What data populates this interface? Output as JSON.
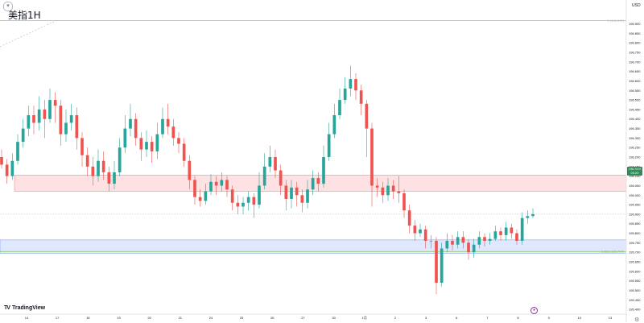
{
  "chart_data": {
    "type": "candlestick",
    "title": "美指1H",
    "currency_label": "USD",
    "ylim": [
      195.375,
      197.025
    ],
    "y_ticks": [
      "196.900",
      "196.850",
      "196.800",
      "196.750",
      "196.700",
      "196.650",
      "196.600",
      "196.550",
      "196.500",
      "196.450",
      "196.400",
      "196.350",
      "196.300",
      "196.250",
      "196.200",
      "196.150",
      "196.100",
      "196.050",
      "196.000",
      "195.950",
      "195.900",
      "195.850",
      "195.800",
      "195.750",
      "195.700",
      "195.650",
      "195.600",
      "195.550",
      "195.500",
      "195.450",
      "195.400"
    ],
    "x_ticks": [
      "14",
      "17",
      "18",
      "19",
      "20",
      "21",
      "24",
      "25",
      "26",
      "27",
      "30",
      "1月",
      "2",
      "3",
      "6",
      "7",
      "8",
      "9",
      "10",
      "13"
    ],
    "current_price": "196.XXX",
    "current_time": "00:20",
    "levels": [
      {
        "label": "0 (196.917)",
        "value": 196.917,
        "color": "#b2b5be"
      },
      {
        "label": "0.382 (195.704)",
        "value": 195.704,
        "color": "#8bc34a"
      }
    ],
    "zones": [
      {
        "name": "resistance",
        "from": 196.105,
        "to": 196.02,
        "color": "#f23645"
      },
      {
        "name": "support",
        "from": 195.765,
        "to": 195.695,
        "color": "#2962ff"
      }
    ],
    "candles": [
      [
        196.2,
        196.16,
        196.24,
        196.14
      ],
      [
        196.16,
        196.1,
        196.19,
        196.06
      ],
      [
        196.1,
        196.18,
        196.22,
        196.08
      ],
      [
        196.18,
        196.28,
        196.32,
        196.16
      ],
      [
        196.28,
        196.35,
        196.4,
        196.25
      ],
      [
        196.35,
        196.42,
        196.47,
        196.31
      ],
      [
        196.42,
        196.38,
        196.47,
        196.32
      ],
      [
        196.38,
        196.45,
        196.52,
        196.34
      ],
      [
        196.45,
        196.4,
        196.5,
        196.3
      ],
      [
        196.4,
        196.5,
        196.56,
        196.38
      ],
      [
        196.5,
        196.47,
        196.54,
        196.38
      ],
      [
        196.47,
        196.32,
        196.5,
        196.26
      ],
      [
        196.32,
        196.38,
        196.45,
        196.28
      ],
      [
        196.38,
        196.42,
        196.48,
        196.34
      ],
      [
        196.42,
        196.3,
        196.46,
        196.24
      ],
      [
        196.3,
        196.21,
        196.33,
        196.15
      ],
      [
        196.21,
        196.15,
        196.25,
        196.1
      ],
      [
        196.15,
        196.1,
        196.2,
        196.05
      ],
      [
        196.1,
        196.18,
        196.24,
        196.07
      ],
      [
        196.18,
        196.12,
        196.23,
        196.08
      ],
      [
        196.12,
        196.06,
        196.15,
        196.02
      ],
      [
        196.06,
        196.12,
        196.18,
        196.03
      ],
      [
        196.12,
        196.25,
        196.3,
        196.1
      ],
      [
        196.25,
        196.35,
        196.42,
        196.22
      ],
      [
        196.35,
        196.4,
        196.48,
        196.31
      ],
      [
        196.4,
        196.3,
        196.43,
        196.26
      ],
      [
        196.3,
        196.24,
        196.33,
        196.18
      ],
      [
        196.24,
        196.28,
        196.34,
        196.2
      ],
      [
        196.28,
        196.23,
        196.31,
        196.17
      ],
      [
        196.23,
        196.32,
        196.38,
        196.19
      ],
      [
        196.32,
        196.4,
        196.46,
        196.3
      ],
      [
        196.4,
        196.36,
        196.48,
        196.32
      ],
      [
        196.36,
        196.3,
        196.4,
        196.26
      ],
      [
        196.3,
        196.27,
        196.33,
        196.22
      ],
      [
        196.27,
        196.18,
        196.3,
        196.15
      ],
      [
        196.18,
        196.08,
        196.21,
        196.03
      ],
      [
        196.08,
        195.99,
        196.1,
        195.95
      ],
      [
        195.99,
        195.97,
        196.03,
        195.94
      ],
      [
        195.97,
        196.02,
        196.06,
        195.95
      ],
      [
        196.02,
        196.07,
        196.11,
        196.0
      ],
      [
        196.07,
        196.05,
        196.1,
        196.0
      ],
      [
        196.05,
        196.08,
        196.12,
        196.02
      ],
      [
        196.08,
        196.03,
        196.1,
        195.99
      ],
      [
        196.03,
        195.96,
        196.05,
        195.92
      ],
      [
        195.96,
        195.94,
        196.0,
        195.9
      ],
      [
        195.94,
        195.96,
        195.99,
        195.9
      ],
      [
        195.96,
        195.99,
        196.02,
        195.92
      ],
      [
        195.99,
        195.95,
        196.01,
        195.88
      ],
      [
        195.95,
        196.05,
        196.12,
        195.93
      ],
      [
        196.05,
        196.15,
        196.22,
        196.03
      ],
      [
        196.15,
        196.2,
        196.26,
        196.12
      ],
      [
        196.2,
        196.13,
        196.24,
        196.09
      ],
      [
        196.13,
        196.05,
        196.16,
        196.0
      ],
      [
        196.05,
        195.98,
        196.08,
        195.92
      ],
      [
        195.98,
        196.04,
        196.08,
        195.93
      ],
      [
        196.04,
        196.0,
        196.07,
        195.94
      ],
      [
        196.0,
        195.96,
        196.03,
        195.91
      ],
      [
        195.96,
        196.03,
        196.08,
        195.93
      ],
      [
        196.03,
        196.09,
        196.13,
        196.0
      ],
      [
        196.09,
        196.06,
        196.12,
        196.02
      ],
      [
        196.06,
        196.2,
        196.26,
        196.04
      ],
      [
        196.2,
        196.32,
        196.38,
        196.18
      ],
      [
        196.32,
        196.42,
        196.48,
        196.3
      ],
      [
        196.42,
        196.5,
        196.56,
        196.4
      ],
      [
        196.5,
        196.56,
        196.62,
        196.48
      ],
      [
        196.56,
        196.61,
        196.68,
        196.52
      ],
      [
        196.61,
        196.55,
        196.64,
        196.5
      ],
      [
        196.55,
        196.48,
        196.58,
        196.42
      ],
      [
        196.48,
        196.35,
        196.5,
        196.2
      ],
      [
        196.35,
        196.05,
        196.38,
        195.94
      ],
      [
        196.05,
        196.04,
        196.09,
        195.99
      ],
      [
        196.04,
        196.0,
        196.07,
        195.96
      ],
      [
        196.0,
        196.05,
        196.09,
        195.97
      ],
      [
        196.05,
        196.02,
        196.08,
        195.98
      ],
      [
        196.02,
        196.01,
        196.1,
        195.96
      ],
      [
        196.01,
        195.92,
        196.03,
        195.88
      ],
      [
        195.92,
        195.84,
        195.95,
        195.8
      ],
      [
        195.84,
        195.8,
        195.87,
        195.76
      ],
      [
        195.8,
        195.82,
        195.85,
        195.78
      ],
      [
        195.82,
        195.76,
        195.84,
        195.72
      ],
      [
        195.76,
        195.76,
        195.79,
        195.72
      ],
      [
        195.76,
        195.54,
        195.78,
        195.48
      ],
      [
        195.54,
        195.72,
        195.75,
        195.52
      ],
      [
        195.72,
        195.76,
        195.8,
        195.7
      ],
      [
        195.76,
        195.74,
        195.79,
        195.71
      ],
      [
        195.74,
        195.78,
        195.81,
        195.72
      ],
      [
        195.78,
        195.75,
        195.81,
        195.72
      ],
      [
        195.75,
        195.7,
        195.77,
        195.66
      ],
      [
        195.7,
        195.74,
        195.77,
        195.67
      ],
      [
        195.74,
        195.78,
        195.81,
        195.72
      ],
      [
        195.78,
        195.76,
        195.8,
        195.73
      ],
      [
        195.76,
        195.77,
        195.8,
        195.74
      ],
      [
        195.77,
        195.81,
        195.84,
        195.76
      ],
      [
        195.81,
        195.79,
        195.83,
        195.76
      ],
      [
        195.79,
        195.83,
        195.86,
        195.76
      ],
      [
        195.83,
        195.8,
        195.85,
        195.77
      ],
      [
        195.8,
        195.76,
        195.82,
        195.74
      ],
      [
        195.76,
        195.88,
        195.91,
        195.74
      ],
      [
        195.88,
        195.89,
        195.92,
        195.85
      ],
      [
        195.89,
        195.9,
        195.93,
        195.88
      ]
    ]
  },
  "brand": "TradingView",
  "settings_icon": "gear-icon"
}
